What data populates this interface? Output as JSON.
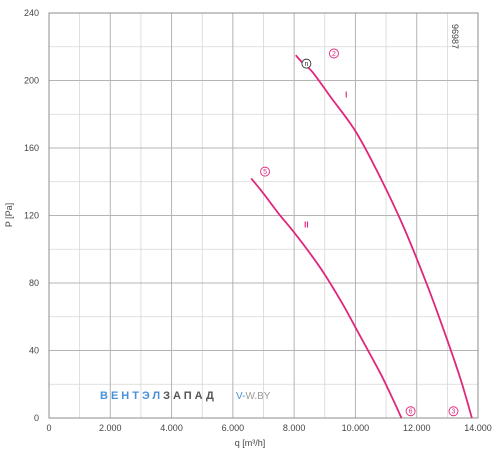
{
  "chart_data": {
    "type": "line",
    "xlabel": "q [m³/h]",
    "ylabel": "P [Pa]",
    "xlim": [
      0,
      14000
    ],
    "ylim": [
      0,
      240
    ],
    "x_ticks": [
      0,
      2000,
      4000,
      6000,
      8000,
      10000,
      12000,
      14000
    ],
    "x_tick_labels": [
      "0",
      "2.000",
      "4.000",
      "6.000",
      "8.000",
      "10.000",
      "12.000",
      "14.000"
    ],
    "y_ticks": [
      0,
      40,
      80,
      120,
      160,
      200,
      240
    ],
    "y_tick_labels": [
      "0",
      "40",
      "80",
      "120",
      "160",
      "200",
      "240"
    ],
    "grid": true,
    "code": "96987",
    "series": [
      {
        "name": "I",
        "color": "#e0267d",
        "x": [
          8050,
          8300,
          8600,
          9200,
          10000,
          10800,
          11600,
          12400,
          13000,
          13450,
          13800
        ],
        "y": [
          215,
          210,
          205,
          190,
          170,
          143,
          112,
          76,
          46,
          22,
          0
        ]
      },
      {
        "name": "II",
        "color": "#e0267d",
        "x": [
          6600,
          7000,
          7500,
          8000,
          8500,
          9000,
          9600,
          10200,
          10800,
          11200,
          11500
        ],
        "y": [
          142,
          133,
          121,
          110,
          98,
          85,
          67,
          47,
          27,
          12,
          0
        ]
      }
    ],
    "markers": [
      {
        "label": "n",
        "x": 8400,
        "y": 210,
        "color": "#333333"
      },
      {
        "label": "2",
        "x": 9300,
        "y": 216,
        "color": "#e0267d"
      },
      {
        "label": "5",
        "x": 7050,
        "y": 146,
        "color": "#e0267d"
      },
      {
        "label": "6",
        "x": 11800,
        "y": 4,
        "color": "#e0267d"
      },
      {
        "label": "3",
        "x": 13200,
        "y": 4,
        "color": "#e0267d"
      }
    ],
    "curve_labels": [
      {
        "label": "I",
        "x": 9700,
        "y": 190
      },
      {
        "label": "II",
        "x": 8400,
        "y": 113
      }
    ]
  },
  "watermark": {
    "brand_part1": "ВЕНТЭЛ",
    "brand_part2": "ЗАПАД",
    "site_part1": "V-",
    "site_part2": "W.BY",
    "color_part1": "#4a90d9",
    "color_part2": "#555555",
    "color_site": "#999999"
  }
}
